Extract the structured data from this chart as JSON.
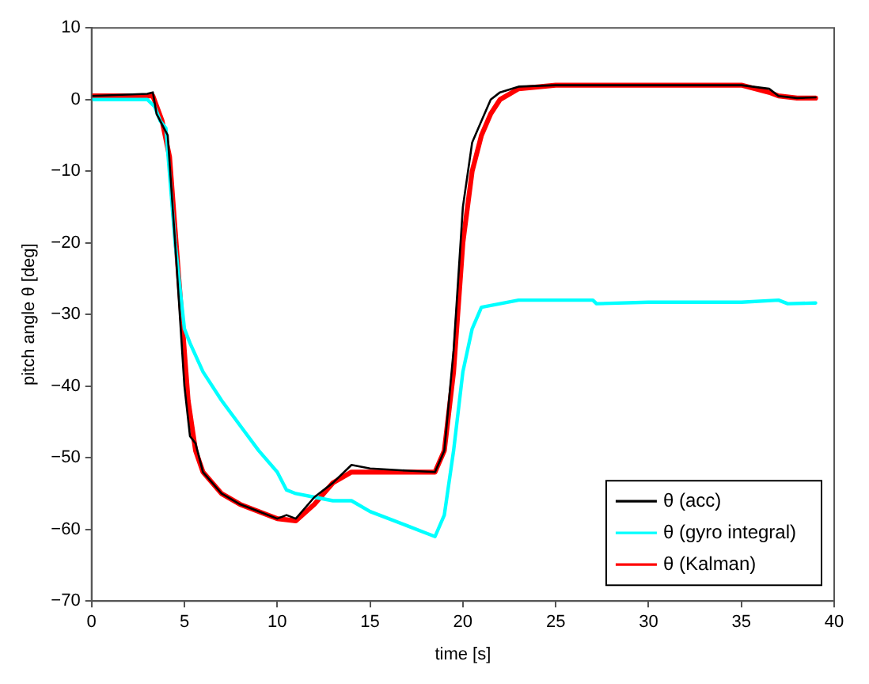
{
  "chart_data": {
    "type": "line",
    "xlabel": "time [s]",
    "ylabel": "pitch angle θ [deg]",
    "xlim": [
      0,
      40
    ],
    "xticks": [
      0,
      5,
      10,
      15,
      20,
      25,
      30,
      35,
      40
    ],
    "ylim": [
      -70,
      10
    ],
    "yticks": [
      -70,
      -60,
      -50,
      -40,
      -30,
      -20,
      -10,
      0,
      10
    ],
    "grid": false,
    "legend": "bottom right",
    "marker": "none",
    "line_style": "solid",
    "series": [
      {
        "name": "θ (acc)",
        "color": "#000000",
        "x": [
          0,
          3,
          3.3,
          3.5,
          3.9,
          4.1,
          4.5,
          5,
          5.3,
          5.6,
          6,
          7,
          8,
          9,
          10,
          10.5,
          11,
          11.5,
          12,
          13,
          14,
          15,
          17,
          18.5,
          19,
          19.5,
          20,
          20.5,
          21,
          21.5,
          22,
          23,
          25,
          30,
          35,
          36.5,
          37,
          38,
          39
        ],
        "values": [
          0.5,
          0.8,
          1,
          -2,
          -4,
          -5,
          -20,
          -40,
          -47,
          -48,
          -52,
          -55,
          -56.5,
          -57.5,
          -58.5,
          -58,
          -58.5,
          -57,
          -55.5,
          -53.5,
          -51,
          -51.5,
          -51.8,
          -52,
          -49,
          -35,
          -15,
          -6,
          -3,
          0,
          1,
          1.8,
          2,
          2,
          2,
          1.5,
          0.5,
          0.2,
          0.3
        ]
      },
      {
        "name": "θ (gyro integral)",
        "color": "#00ffff",
        "x": [
          0,
          3,
          3.4,
          3.7,
          4,
          4.5,
          5,
          5.3,
          6,
          7,
          8,
          9,
          10,
          10.5,
          11,
          12,
          13,
          14,
          15,
          17,
          18,
          18.5,
          19,
          19.5,
          20,
          20.5,
          21,
          22,
          23,
          27,
          27.2,
          30,
          35,
          37,
          37.5,
          39
        ],
        "values": [
          0,
          0,
          -1,
          -3,
          -4,
          -20,
          -32,
          -34,
          -38,
          -42,
          -45.5,
          -49,
          -52,
          -54.5,
          -55,
          -55.5,
          -56,
          -56,
          -57.5,
          -59.5,
          -60.5,
          -61,
          -58,
          -49,
          -38,
          -32,
          -29,
          -28.5,
          -28,
          -28,
          -28.5,
          -28.3,
          -28.3,
          -28,
          -28.5,
          -28.4
        ]
      },
      {
        "name": "θ (Kalman)",
        "color": "#ff0000",
        "x": [
          0,
          3.3,
          3.8,
          4.2,
          4.7,
          5.2,
          5.6,
          6,
          7,
          8,
          9,
          10,
          11,
          12,
          13,
          14,
          16,
          18,
          18.5,
          19,
          19.5,
          20,
          20.5,
          21,
          21.5,
          22,
          23,
          25,
          30,
          35,
          36.5,
          37,
          38,
          39
        ],
        "values": [
          0.5,
          0.5,
          -3,
          -8,
          -25,
          -42,
          -49,
          -52,
          -55,
          -56.5,
          -57.5,
          -58.5,
          -58.8,
          -56.5,
          -53.5,
          -52,
          -52,
          -52,
          -52,
          -49,
          -38,
          -20,
          -10,
          -5,
          -2,
          0,
          1.5,
          2,
          2,
          2,
          1,
          0.5,
          0.2,
          0.2
        ]
      }
    ]
  }
}
